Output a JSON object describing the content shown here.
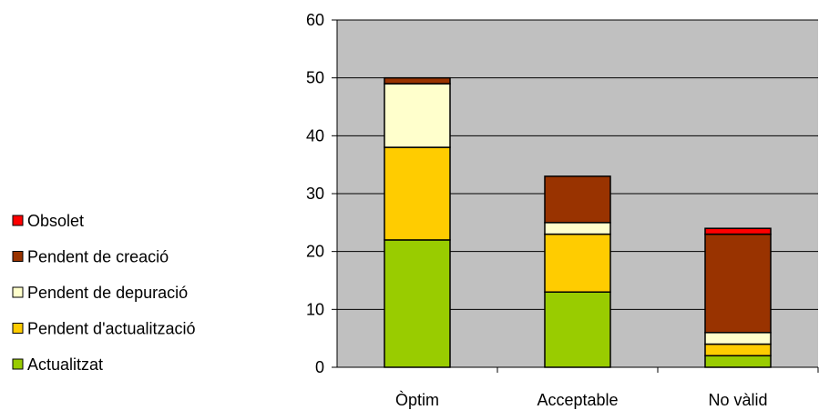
{
  "chart_data": {
    "type": "bar",
    "stacked": true,
    "title": "",
    "xlabel": "",
    "ylabel": "",
    "categories": [
      "Òptim",
      "Acceptable",
      "No vàlid"
    ],
    "ylim": [
      0,
      60
    ],
    "yticks": [
      0,
      10,
      20,
      30,
      40,
      50,
      60
    ],
    "grid": true,
    "legend_position": "left",
    "plot_background": "#c0c0c0",
    "series": [
      {
        "name": "Actualitzat",
        "color": "#99cc00",
        "values": [
          22,
          13,
          2
        ]
      },
      {
        "name": "Pendent d'actualització",
        "color": "#ffcc00",
        "values": [
          16,
          10,
          2
        ]
      },
      {
        "name": "Pendent de depuració",
        "color": "#ffffcc",
        "values": [
          11,
          2,
          2
        ]
      },
      {
        "name": "Pendent de creació",
        "color": "#993300",
        "values": [
          1,
          8,
          17
        ]
      },
      {
        "name": "Obsolet",
        "color": "#ff0000",
        "values": [
          0,
          0,
          1
        ]
      }
    ]
  }
}
